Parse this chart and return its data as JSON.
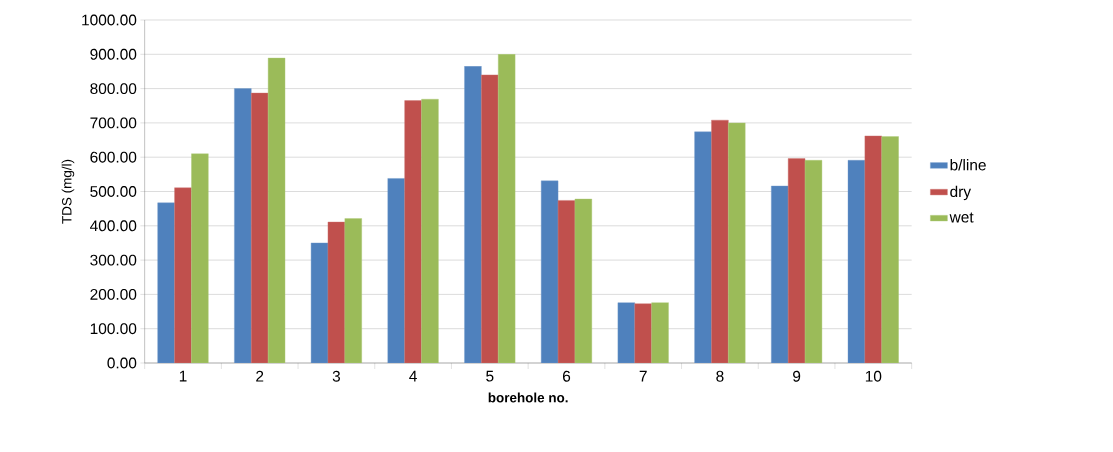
{
  "chart_data": {
    "type": "bar",
    "xlabel": "borehole no.",
    "ylabel": "TDS (mg/l)",
    "categories": [
      "1",
      "2",
      "3",
      "4",
      "5",
      "6",
      "7",
      "8",
      "9",
      "10"
    ],
    "series": [
      {
        "name": "b/line",
        "color": "#4f81bd",
        "values": [
          467,
          800,
          350,
          538,
          865,
          531,
          176,
          674,
          516,
          591
        ]
      },
      {
        "name": "dry",
        "color": "#c0504d",
        "values": [
          511,
          787,
          411,
          765,
          840,
          474,
          173,
          708,
          596,
          662
        ]
      },
      {
        "name": "wet",
        "color": "#9bbb59",
        "values": [
          610,
          889,
          421,
          769,
          900,
          478,
          176,
          700,
          591,
          660
        ]
      }
    ],
    "ylim": [
      0,
      1000
    ],
    "yticks": [
      {
        "value": 0,
        "label": "0.00"
      },
      {
        "value": 100,
        "label": "100.00"
      },
      {
        "value": 200,
        "label": "200.00"
      },
      {
        "value": 300,
        "label": "300.00"
      },
      {
        "value": 400,
        "label": "400.00"
      },
      {
        "value": 500,
        "label": "500.00"
      },
      {
        "value": 600,
        "label": "600.00"
      },
      {
        "value": 700,
        "label": "700.00"
      },
      {
        "value": 800,
        "label": "800.00"
      },
      {
        "value": 900,
        "label": "900.00"
      },
      {
        "value": 1000,
        "label": "1000.00"
      }
    ],
    "grid": "y",
    "legend": "right"
  }
}
